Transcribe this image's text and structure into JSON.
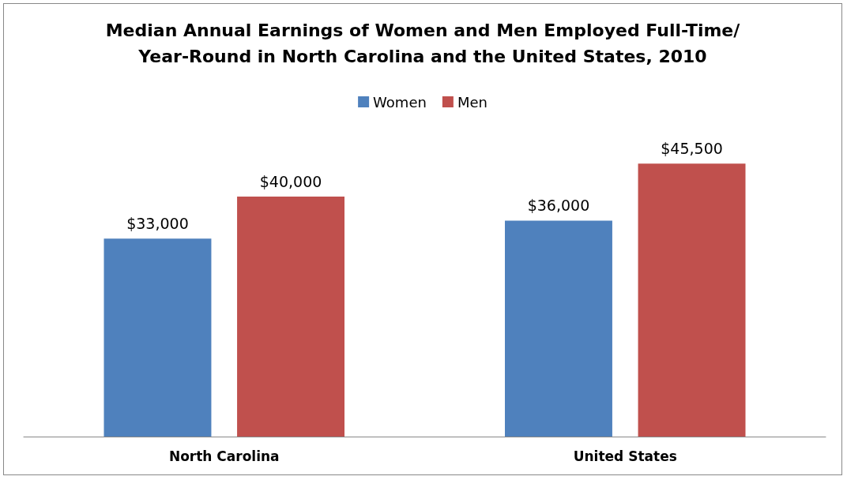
{
  "chart_data": {
    "type": "bar",
    "title": "Median Annual Earnings of Women and Men Employed Full-Time/Year-Round in North Carolina and the United States, 2010",
    "categories": [
      "North Carolina",
      "United States"
    ],
    "series": [
      {
        "name": "Women",
        "color": "#4f81bd",
        "values": [
          33000,
          36000
        ],
        "value_labels": [
          "$33,000",
          "$36,000"
        ]
      },
      {
        "name": "Men",
        "color": "#c0504d",
        "values": [
          40000,
          45500
        ],
        "value_labels": [
          "$40,000",
          "$45,500"
        ]
      }
    ],
    "legend": "top"
  }
}
